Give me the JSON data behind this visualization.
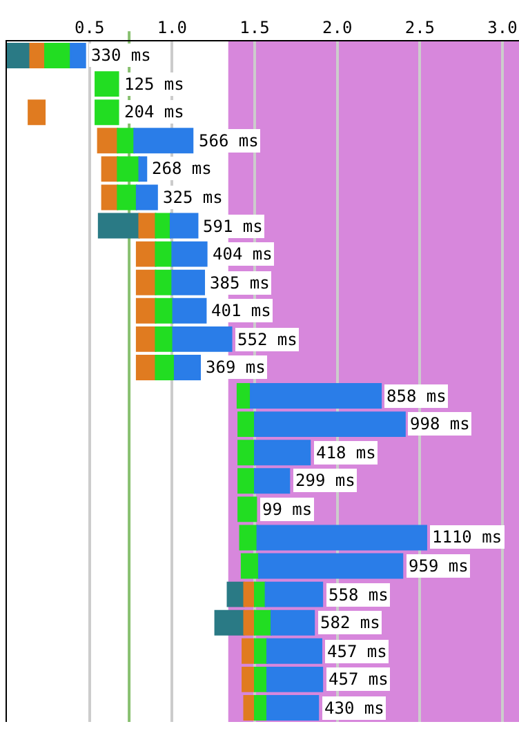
{
  "chart_data": {
    "type": "bar",
    "orientation": "horizontal",
    "categories": [
      null,
      null,
      null,
      null,
      null,
      null,
      null,
      null,
      null,
      null,
      null,
      null,
      null,
      null,
      null,
      null,
      null,
      null,
      null,
      null,
      null,
      null,
      null,
      null
    ],
    "series": [
      {
        "color": "#2a7a85",
        "base": [
          0,
          null,
          null,
          null,
          null,
          null,
          0.555,
          null,
          null,
          null,
          null,
          null,
          null,
          null,
          null,
          null,
          null,
          null,
          null,
          1.335,
          1.26,
          null,
          null,
          null
        ],
        "values": [
          0.14,
          null,
          null,
          null,
          null,
          null,
          0.245,
          null,
          null,
          null,
          null,
          null,
          null,
          null,
          null,
          null,
          null,
          null,
          null,
          0.1,
          0.175,
          null,
          null,
          null
        ]
      },
      {
        "color": "#e07b20",
        "base": [
          0.14,
          null,
          0.13,
          0.55,
          0.575,
          0.575,
          0.8,
          0.785,
          0.785,
          0.785,
          0.785,
          0.785,
          null,
          null,
          null,
          null,
          null,
          null,
          null,
          1.435,
          1.435,
          1.425,
          1.425,
          1.435
        ],
        "values": [
          0.09,
          null,
          0.1,
          0.12,
          0.095,
          0.095,
          0.1,
          0.115,
          0.115,
          0.115,
          0.115,
          0.115,
          null,
          null,
          null,
          null,
          null,
          null,
          null,
          0.065,
          0.065,
          0.075,
          0.075,
          0.065
        ]
      },
      {
        "color": "#22dd22",
        "base": [
          0.23,
          0.535,
          0.535,
          0.67,
          0.67,
          0.67,
          0.9,
          0.9,
          0.9,
          0.9,
          0.9,
          0.9,
          1.395,
          1.4,
          1.4,
          1.4,
          1.4,
          1.41,
          1.42,
          1.5,
          1.5,
          1.5,
          1.5,
          1.5
        ],
        "values": [
          0.155,
          0.14,
          0.14,
          0.1,
          0.13,
          0.115,
          0.09,
          0.1,
          0.1,
          0.105,
          0.105,
          0.115,
          0.08,
          0.1,
          0.1,
          0.1,
          0.11,
          0.105,
          0.105,
          0.065,
          0.1,
          0.075,
          0.075,
          0.075
        ]
      },
      {
        "color": "#2a7de8",
        "base": [
          0.385,
          null,
          null,
          0.77,
          0.8,
          0.785,
          0.99,
          1.0,
          1.0,
          1.005,
          1.005,
          1.015,
          1.475,
          1.5,
          1.5,
          1.5,
          null,
          1.515,
          1.525,
          1.565,
          1.6,
          1.575,
          1.575,
          1.575
        ],
        "values": [
          0.09,
          null,
          null,
          0.355,
          0.045,
          0.125,
          0.165,
          0.21,
          0.195,
          0.2,
          0.355,
          0.155,
          0.79,
          0.91,
          0.335,
          0.21,
          null,
          1.025,
          0.87,
          0.345,
          0.26,
          0.33,
          0.335,
          0.31
        ]
      }
    ],
    "value_labels": [
      "330 ms",
      "125 ms",
      "204 ms",
      "566 ms",
      "268 ms",
      "325 ms",
      "591 ms",
      "404 ms",
      "385 ms",
      "401 ms",
      "552 ms",
      "369 ms",
      "858 ms",
      "998 ms",
      "418 ms",
      "299 ms",
      "99 ms",
      "1110 ms",
      "959 ms",
      "558 ms",
      "582 ms",
      "457 ms",
      "457 ms",
      "430 ms"
    ],
    "xlim": [
      0,
      3.1
    ],
    "xticks": [
      {
        "value": 0.5,
        "label": "0.5"
      },
      {
        "value": 1.0,
        "label": "1.0"
      },
      {
        "value": 1.5,
        "label": "1.5"
      },
      {
        "value": 2.0,
        "label": "2.0"
      },
      {
        "value": 2.5,
        "label": "2.5"
      },
      {
        "value": 3.0,
        "label": "3.0"
      }
    ],
    "grid": "x",
    "tick_labels": "x",
    "bands": [
      {
        "axis": "x",
        "from": 1.34,
        "to": 3.1,
        "color": "#d787dc"
      }
    ],
    "ref_lines": [
      {
        "axis": "x",
        "value": 0.74,
        "color": "#88c070"
      }
    ]
  }
}
